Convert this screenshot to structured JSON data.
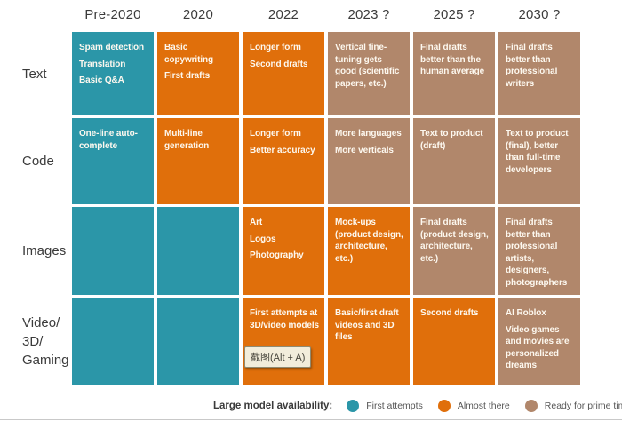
{
  "colors": {
    "first_attempts": "#2B96A8",
    "almost_there": "#E06F0B",
    "ready_for_prime_time": "#B1876B",
    "cell_text": "#FDF8EF",
    "header_text": "#3B3B3B",
    "legend_text": "#565656"
  },
  "table": {
    "columns": [
      "Pre-2020",
      "2020",
      "2022",
      "2023 ?",
      "2025 ?",
      "2030 ?"
    ],
    "rows": [
      {
        "label": "Text",
        "cells": [
          {
            "status": "first_attempts",
            "items": [
              "Spam detection",
              "Translation",
              "Basic Q&A"
            ]
          },
          {
            "status": "almost_there",
            "items": [
              "Basic copywriting",
              "First drafts"
            ]
          },
          {
            "status": "almost_there",
            "items": [
              "Longer form",
              "Second drafts"
            ]
          },
          {
            "status": "ready_for_prime_time",
            "items": [
              "Vertical fine-tuning gets good (scientific papers, etc.)"
            ]
          },
          {
            "status": "ready_for_prime_time",
            "items": [
              "Final drafts better than the human average"
            ]
          },
          {
            "status": "ready_for_prime_time",
            "items": [
              "Final drafts better than professional writers"
            ]
          }
        ]
      },
      {
        "label": "Code",
        "cells": [
          {
            "status": "first_attempts",
            "items": [
              "One-line auto-complete"
            ]
          },
          {
            "status": "almost_there",
            "items": [
              "Multi-line generation"
            ]
          },
          {
            "status": "almost_there",
            "items": [
              "Longer form",
              "Better accuracy"
            ]
          },
          {
            "status": "ready_for_prime_time",
            "items": [
              "More languages",
              "More verticals"
            ]
          },
          {
            "status": "ready_for_prime_time",
            "items": [
              "Text to product (draft)"
            ]
          },
          {
            "status": "ready_for_prime_time",
            "items": [
              "Text to product (final), better than full-time developers"
            ]
          }
        ]
      },
      {
        "label": "Images",
        "cells": [
          {
            "status": "first_attempts",
            "items": []
          },
          {
            "status": "first_attempts",
            "items": []
          },
          {
            "status": "almost_there",
            "items": [
              "Art",
              "Logos",
              "Photography"
            ]
          },
          {
            "status": "almost_there",
            "items": [
              "Mock-ups (product design, architecture, etc.)"
            ]
          },
          {
            "status": "ready_for_prime_time",
            "items": [
              "Final drafts (product design, architecture, etc.)"
            ]
          },
          {
            "status": "ready_for_prime_time",
            "items": [
              "Final drafts better than professional artists, designers, photographers"
            ]
          }
        ]
      },
      {
        "label": "Video/3D/Gaming",
        "label_lines": [
          "Video/",
          "3D/",
          "Gaming"
        ],
        "cells": [
          {
            "status": "first_attempts",
            "items": []
          },
          {
            "status": "first_attempts",
            "items": []
          },
          {
            "status": "almost_there",
            "items": [
              "First attempts at 3D/video models"
            ]
          },
          {
            "status": "almost_there",
            "items": [
              "Basic/first draft videos and 3D files"
            ]
          },
          {
            "status": "almost_there",
            "items": [
              "Second drafts"
            ]
          },
          {
            "status": "ready_for_prime_time",
            "items": [
              "AI Roblox",
              "Video games and movies are personalized dreams"
            ]
          }
        ]
      }
    ]
  },
  "legend": {
    "title": "Large model availability:",
    "items": [
      {
        "label": "First attempts",
        "color": "#2B96A8"
      },
      {
        "label": "Almost there",
        "color": "#E06F0B"
      },
      {
        "label": "Ready for prime time",
        "color": "#B1876B"
      }
    ]
  },
  "tooltip": {
    "text": "截图(Alt + A)"
  }
}
